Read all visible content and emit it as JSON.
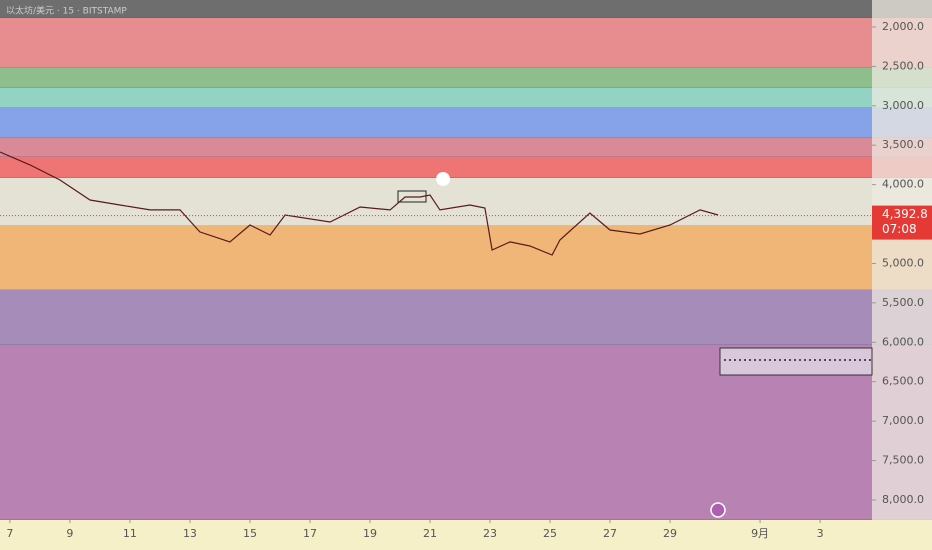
{
  "chart_data": {
    "type": "line",
    "title": "以太坊/美元 · 15 · BITSTAMP",
    "x": [
      6.67,
      7.67,
      8.67,
      9.67,
      10.67,
      11.67,
      12.67,
      13.33,
      14.33,
      15,
      15.67,
      16.17,
      17.67,
      18.67,
      19.67,
      20.17,
      20.67,
      21,
      21.33,
      22.33,
      22.83,
      23.07,
      23.67,
      24.33,
      25.07,
      25.33,
      26.33,
      27,
      28,
      29,
      30,
      30.6
    ],
    "values": [
      3586,
      3750,
      3941,
      4195,
      4258,
      4321,
      4321,
      4600,
      4727,
      4512,
      4639,
      4385,
      4474,
      4284,
      4321,
      4157,
      4157,
      4131,
      4321,
      4258,
      4296,
      4829,
      4727,
      4778,
      4892,
      4702,
      4360,
      4575,
      4626,
      4512,
      4321,
      4385
    ],
    "color": "#5a1a1a",
    "xlim": [
      6.67,
      35.73
    ],
    "xticks": [
      7,
      9,
      11,
      13,
      15,
      17,
      19,
      21,
      23,
      25,
      27,
      29,
      {
        "value": 32,
        "label": "9月"
      },
      {
        "value": 34,
        "label": "3"
      }
    ],
    "ylim": [
      1658,
      8254
    ],
    "inverted": true,
    "yticks": [
      {
        "value": 2000,
        "label": "2,000.0"
      },
      {
        "value": 2500,
        "label": "2,500.0"
      },
      {
        "value": 3000,
        "label": "3,000.0"
      },
      {
        "value": 3500,
        "label": "3,500.0"
      },
      {
        "value": 4000,
        "label": "4,000.0"
      },
      {
        "value": 4500,
        "label": "4,500.0"
      },
      {
        "value": 5000,
        "label": "5,000.0"
      },
      {
        "value": 5500,
        "label": "5,500.0"
      },
      {
        "value": 6000,
        "label": "6,000.0"
      },
      {
        "value": 6500,
        "label": "6,500.0"
      },
      {
        "value": 7000,
        "label": "7,000.0"
      },
      {
        "value": 7500,
        "label": "7,500.0"
      },
      {
        "value": 8000,
        "label": "8,000.0"
      }
    ],
    "bands": [
      {
        "from": 1658,
        "to": 1886,
        "color": "#6e6e6e"
      },
      {
        "from": 1886,
        "to": 2520,
        "color": "#e88d8f"
      },
      {
        "from": 2520,
        "to": 2773,
        "color": "#8fbe8d"
      },
      {
        "from": 2773,
        "to": 3027,
        "color": "#93d3c3"
      },
      {
        "from": 3027,
        "to": 3408,
        "color": "#86a3e9"
      },
      {
        "from": 3408,
        "to": 3650,
        "color": "#d98a96"
      },
      {
        "from": 3650,
        "to": 3916,
        "color": "#ef7474"
      },
      {
        "from": 3916,
        "to": 4525,
        "color": "#e4e1d5"
      },
      {
        "from": 4525,
        "to": 5336,
        "color": "#f0b677"
      },
      {
        "from": 5336,
        "to": 6034,
        "color": "#a68cb9"
      },
      {
        "from": 6034,
        "to": 8254,
        "color": "#b882b2"
      }
    ],
    "last_price": {
      "value": 4392.8,
      "label": "4,392.8"
    },
    "countdown": "07:08",
    "price_color": "#e53935"
  }
}
